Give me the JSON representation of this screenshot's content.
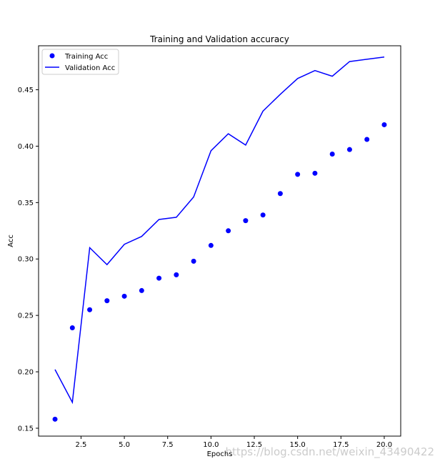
{
  "chart_data": {
    "type": "scatter+line",
    "title": "Training and Validation accuracy",
    "xlabel": "Epochs",
    "ylabel": "Acc",
    "xlim": [
      0.05,
      20.95
    ],
    "ylim": [
      0.143,
      0.489
    ],
    "xticks": [
      2.5,
      5.0,
      7.5,
      10.0,
      12.5,
      15.0,
      17.5,
      20.0
    ],
    "xtick_labels": [
      "2.5",
      "5.0",
      "7.5",
      "10.0",
      "12.5",
      "15.0",
      "17.5",
      "20.0"
    ],
    "yticks": [
      0.15,
      0.2,
      0.25,
      0.3,
      0.35,
      0.4,
      0.45
    ],
    "ytick_labels": [
      "0.15",
      "0.20",
      "0.25",
      "0.30",
      "0.35",
      "0.40",
      "0.45"
    ],
    "grid": false,
    "legend": "top-left",
    "x": [
      1,
      2,
      3,
      4,
      5,
      6,
      7,
      8,
      9,
      10,
      11,
      12,
      13,
      14,
      15,
      16,
      17,
      18,
      19,
      20
    ],
    "series": [
      {
        "name": "Training Acc",
        "style": "points",
        "color": "#0000ff",
        "values": [
          0.158,
          0.239,
          0.255,
          0.263,
          0.267,
          0.272,
          0.283,
          0.286,
          0.298,
          0.312,
          0.325,
          0.334,
          0.339,
          0.358,
          0.375,
          0.376,
          0.393,
          0.397,
          0.406,
          0.419
        ]
      },
      {
        "name": "Validation Acc",
        "style": "line",
        "color": "#0000ff",
        "values": [
          0.202,
          0.173,
          0.31,
          0.295,
          0.313,
          0.32,
          0.335,
          0.337,
          0.355,
          0.396,
          0.411,
          0.401,
          0.431,
          0.446,
          0.46,
          0.467,
          0.462,
          0.475,
          0.477,
          0.479
        ]
      }
    ]
  },
  "watermark": "https://blog.csdn.net/weixin_43490422"
}
